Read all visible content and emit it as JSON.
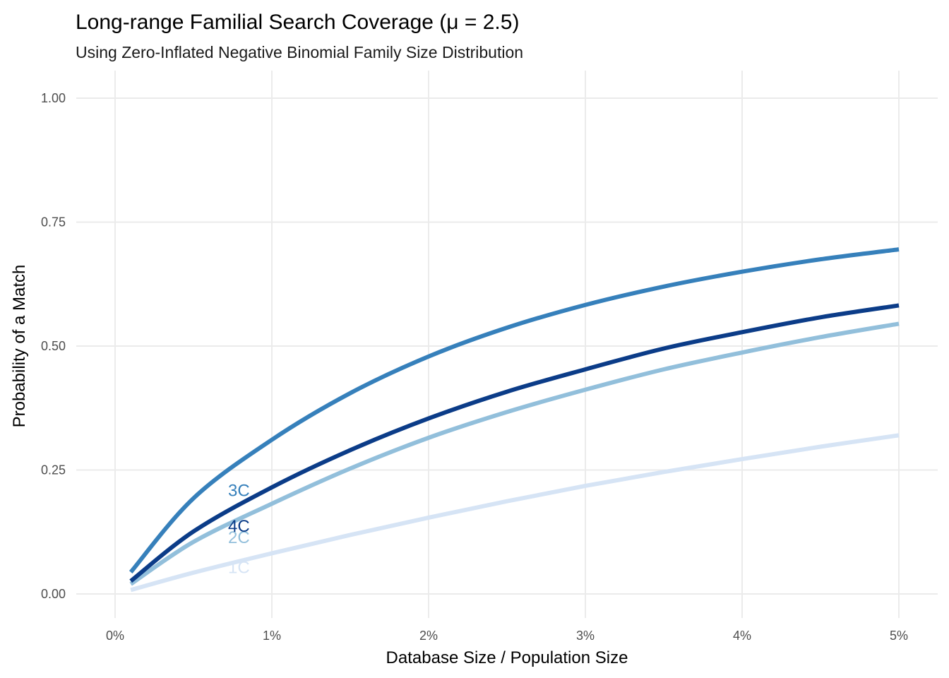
{
  "chart_data": {
    "type": "line",
    "title": "Long-range Familial Search Coverage (μ = 2.5)",
    "subtitle": "Using Zero-Inflated Negative Binomial Family Size Distribution",
    "xlabel": "Database Size / Population Size",
    "ylabel": "Probability of a Match",
    "xlim": [
      0,
      0.05
    ],
    "ylim": [
      0,
      1
    ],
    "x_ticks": [
      0,
      0.01,
      0.02,
      0.03,
      0.04,
      0.05
    ],
    "x_tick_labels": [
      "0%",
      "1%",
      "2%",
      "3%",
      "4%",
      "5%"
    ],
    "y_ticks": [
      0,
      0.25,
      0.5,
      0.75,
      1.0
    ],
    "y_tick_labels": [
      "0.00",
      "0.25",
      "0.50",
      "0.75",
      "1.00"
    ],
    "grid": true,
    "legend": "none",
    "label_x": 0.0079,
    "x": [
      0.001,
      0.005,
      0.01,
      0.015,
      0.02,
      0.025,
      0.03,
      0.035,
      0.04,
      0.045,
      0.05
    ],
    "series": [
      {
        "name": "1C",
        "color": "#d6e4f5",
        "label_y": 0.053,
        "values": [
          0.008,
          0.043,
          0.082,
          0.119,
          0.154,
          0.187,
          0.218,
          0.246,
          0.272,
          0.297,
          0.32
        ]
      },
      {
        "name": "2C",
        "color": "#92bfdb",
        "label_y": 0.113,
        "values": [
          0.02,
          0.105,
          0.182,
          0.253,
          0.315,
          0.367,
          0.412,
          0.453,
          0.487,
          0.518,
          0.545
        ]
      },
      {
        "name": "4C",
        "color": "#0b3c88",
        "label_y": 0.136,
        "values": [
          0.026,
          0.126,
          0.215,
          0.29,
          0.354,
          0.408,
          0.453,
          0.495,
          0.528,
          0.558,
          0.582
        ]
      },
      {
        "name": "3C",
        "color": "#3680bb",
        "label_y": 0.208,
        "values": [
          0.044,
          0.193,
          0.311,
          0.405,
          0.479,
          0.537,
          0.583,
          0.62,
          0.65,
          0.675,
          0.695
        ]
      }
    ]
  }
}
